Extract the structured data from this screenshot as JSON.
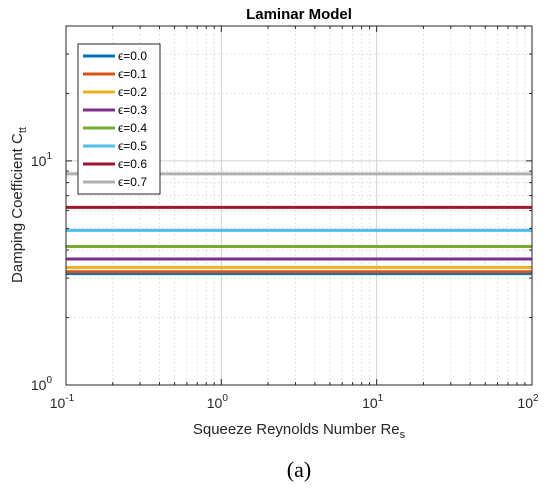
{
  "chart_data": {
    "type": "line",
    "title": "Laminar Model",
    "xlabel": {
      "main": "Squeeze Reynolds Number Re",
      "sub": "s"
    },
    "ylabel": {
      "main": "Damping Coefficient C",
      "sub": "tt"
    },
    "xscale": "log",
    "yscale": "log",
    "xlim": [
      0.1,
      100
    ],
    "ylim": [
      1,
      40
    ],
    "x_ticks": [
      {
        "base": "10",
        "exp": "-1"
      },
      {
        "base": "10",
        "exp": "0"
      },
      {
        "base": "10",
        "exp": "1"
      },
      {
        "base": "10",
        "exp": "2"
      }
    ],
    "y_ticks": [
      {
        "base": "10",
        "exp": "0"
      },
      {
        "base": "10",
        "exp": "1"
      }
    ],
    "grid": true,
    "legend_position": "top-left",
    "x": [
      0.1,
      100
    ],
    "series": [
      {
        "name": "ϵ=0.0",
        "color": "#0072BD",
        "values": [
          3.14,
          3.14
        ]
      },
      {
        "name": "ϵ=0.1",
        "color": "#D95319",
        "values": [
          3.2,
          3.2
        ]
      },
      {
        "name": "ϵ=0.2",
        "color": "#EDB120",
        "values": [
          3.35,
          3.35
        ]
      },
      {
        "name": "ϵ=0.3",
        "color": "#7E2F8E",
        "values": [
          3.65,
          3.65
        ]
      },
      {
        "name": "ϵ=0.4",
        "color": "#77AC30",
        "values": [
          4.15,
          4.15
        ]
      },
      {
        "name": "ϵ=0.5",
        "color": "#4DBEEE",
        "values": [
          4.9,
          4.9
        ]
      },
      {
        "name": "ϵ=0.6",
        "color": "#A2142F",
        "values": [
          6.2,
          6.2
        ]
      },
      {
        "name": "ϵ=0.7",
        "color": "#B0B0B0",
        "values": [
          8.75,
          8.75
        ]
      }
    ]
  },
  "caption": "(a)"
}
